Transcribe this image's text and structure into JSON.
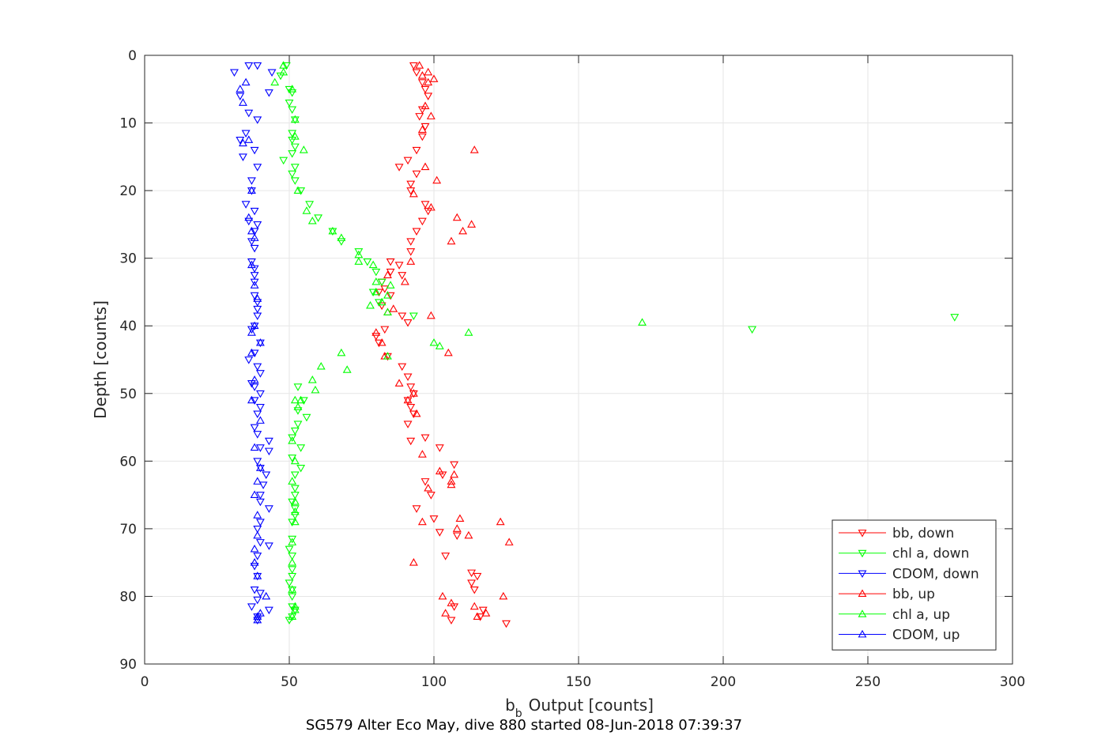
{
  "chart_data": {
    "type": "scatter",
    "title": "",
    "xlabel": "Output [counts]",
    "xlabel_symbol": "b",
    "xlabel_subscript": "b",
    "ylabel": "Depth [counts]",
    "caption": "SG579 Alter Eco May, dive 880 started 08-Jun-2018 07:39:37",
    "xlim": [
      0,
      300
    ],
    "ylim": [
      0,
      90
    ],
    "y_reversed": true,
    "grid": true,
    "legend_position": "bottom-right",
    "xticks": [
      0,
      50,
      100,
      150,
      200,
      250,
      300
    ],
    "yticks": [
      0,
      10,
      20,
      30,
      40,
      50,
      60,
      70,
      80,
      90
    ],
    "colors": {
      "red": "#ff0000",
      "green": "#00ff00",
      "blue": "#0000ff"
    },
    "series": [
      {
        "name": "bb, down",
        "marker": "triangle-down",
        "color": "#ff0000",
        "points": [
          [
            93,
            1.5
          ],
          [
            94,
            2.5
          ],
          [
            96,
            4
          ],
          [
            97,
            5
          ],
          [
            98,
            6
          ],
          [
            96,
            8
          ],
          [
            95,
            9
          ],
          [
            97,
            10.5
          ],
          [
            96,
            12
          ],
          [
            94,
            14
          ],
          [
            91,
            15.5
          ],
          [
            88,
            16.5
          ],
          [
            94,
            17.5
          ],
          [
            92,
            19
          ],
          [
            92,
            20
          ],
          [
            97,
            22
          ],
          [
            98,
            23
          ],
          [
            96,
            24.5
          ],
          [
            94,
            26
          ],
          [
            92,
            27.5
          ],
          [
            92,
            29
          ],
          [
            85,
            30.5
          ],
          [
            88,
            31
          ],
          [
            85,
            32
          ],
          [
            89,
            32.5
          ],
          [
            82,
            33.5
          ],
          [
            83,
            34.5
          ],
          [
            81,
            35
          ],
          [
            85,
            35.5
          ],
          [
            82,
            37
          ],
          [
            89,
            38.5
          ],
          [
            91,
            39.5
          ],
          [
            83,
            40.5
          ],
          [
            80,
            41.5
          ],
          [
            81,
            42.5
          ],
          [
            84,
            44.5
          ],
          [
            89,
            46
          ],
          [
            91,
            47.5
          ],
          [
            92,
            49
          ],
          [
            93,
            50
          ],
          [
            91,
            51
          ],
          [
            92,
            52
          ],
          [
            93,
            53
          ],
          [
            91,
            54.5
          ],
          [
            97,
            56.5
          ],
          [
            92,
            57
          ],
          [
            102,
            58
          ],
          [
            107,
            60.5
          ],
          [
            103,
            62
          ],
          [
            97,
            63
          ],
          [
            99,
            65
          ],
          [
            94,
            67
          ],
          [
            100,
            68.5
          ],
          [
            102,
            70.5
          ],
          [
            108,
            71
          ],
          [
            104,
            74
          ],
          [
            113,
            76.5
          ],
          [
            115,
            77
          ],
          [
            113,
            78
          ],
          [
            114,
            79
          ],
          [
            107,
            81.5
          ],
          [
            117,
            82
          ],
          [
            116,
            83
          ],
          [
            106,
            83.5
          ],
          [
            125,
            84
          ]
        ]
      },
      {
        "name": "chl a, down",
        "marker": "triangle-down",
        "color": "#00ff00",
        "points": [
          [
            49,
            1.5
          ],
          [
            47,
            3
          ],
          [
            50,
            5
          ],
          [
            51,
            5.5
          ],
          [
            50,
            7
          ],
          [
            51,
            8
          ],
          [
            52,
            9.5
          ],
          [
            51,
            11.5
          ],
          [
            51,
            12.5
          ],
          [
            52,
            13.5
          ],
          [
            51,
            14.5
          ],
          [
            48,
            15.5
          ],
          [
            52,
            16.5
          ],
          [
            51,
            17.5
          ],
          [
            52,
            18.5
          ],
          [
            54,
            20
          ],
          [
            57,
            22
          ],
          [
            60,
            24
          ],
          [
            65,
            26
          ],
          [
            68,
            27.5
          ],
          [
            74,
            29
          ],
          [
            77,
            30.5
          ],
          [
            80,
            32
          ],
          [
            82,
            33.5
          ],
          [
            79,
            35
          ],
          [
            81,
            36.5
          ],
          [
            93,
            38.5
          ],
          [
            210,
            40.5
          ],
          [
            280,
            38.7
          ],
          [
            53,
            49
          ],
          [
            55,
            51
          ],
          [
            53,
            52.5
          ],
          [
            56,
            53.5
          ],
          [
            53,
            54.5
          ],
          [
            52,
            55.5
          ],
          [
            51,
            56.5
          ],
          [
            54,
            58
          ],
          [
            51,
            59.5
          ],
          [
            54,
            61
          ],
          [
            52,
            62
          ],
          [
            52,
            64
          ],
          [
            52,
            65
          ],
          [
            51,
            66
          ],
          [
            52,
            67
          ],
          [
            52,
            68
          ],
          [
            51,
            69
          ],
          [
            51,
            71.5
          ],
          [
            50,
            73
          ],
          [
            51,
            74
          ],
          [
            51,
            76
          ],
          [
            51,
            77
          ],
          [
            50,
            78
          ],
          [
            51,
            79
          ],
          [
            51,
            80
          ],
          [
            51,
            81.5
          ],
          [
            52,
            82
          ],
          [
            51,
            83
          ],
          [
            50,
            83.5
          ]
        ]
      },
      {
        "name": "CDOM, down",
        "marker": "triangle-down",
        "color": "#0000ff",
        "points": [
          [
            36,
            1.5
          ],
          [
            39,
            1.5
          ],
          [
            31,
            2.5
          ],
          [
            44,
            2.5
          ],
          [
            43,
            5.5
          ],
          [
            33,
            6
          ],
          [
            36,
            8.5
          ],
          [
            39,
            9.5
          ],
          [
            35,
            11.5
          ],
          [
            33,
            12.5
          ],
          [
            38,
            14
          ],
          [
            34,
            15
          ],
          [
            39,
            16.5
          ],
          [
            37,
            18.5
          ],
          [
            37,
            20
          ],
          [
            35,
            22
          ],
          [
            38,
            23
          ],
          [
            36,
            24.5
          ],
          [
            39,
            25
          ],
          [
            38,
            26
          ],
          [
            37,
            27.5
          ],
          [
            38,
            28.5
          ],
          [
            37,
            30.5
          ],
          [
            38,
            31.5
          ],
          [
            38,
            32.5
          ],
          [
            38,
            33.5
          ],
          [
            38,
            35.5
          ],
          [
            39,
            36.5
          ],
          [
            39,
            37.5
          ],
          [
            39,
            38.5
          ],
          [
            38,
            40
          ],
          [
            37,
            40.5
          ],
          [
            40,
            42.5
          ],
          [
            38,
            44
          ],
          [
            36,
            45
          ],
          [
            39,
            46
          ],
          [
            40,
            47
          ],
          [
            37,
            48.5
          ],
          [
            38,
            49
          ],
          [
            40,
            50
          ],
          [
            38,
            51
          ],
          [
            40,
            52
          ],
          [
            39,
            53
          ],
          [
            38,
            55
          ],
          [
            39,
            56
          ],
          [
            43,
            57
          ],
          [
            40,
            58
          ],
          [
            43,
            58.5
          ],
          [
            39,
            60
          ],
          [
            40,
            61
          ],
          [
            42,
            62
          ],
          [
            41,
            63.5
          ],
          [
            40,
            65
          ],
          [
            40,
            66
          ],
          [
            43,
            67
          ],
          [
            40,
            69
          ],
          [
            39,
            70
          ],
          [
            40,
            72
          ],
          [
            43,
            72.5
          ],
          [
            39,
            74
          ],
          [
            38,
            75.5
          ],
          [
            39,
            77
          ],
          [
            38,
            79
          ],
          [
            40,
            79.5
          ],
          [
            39,
            80.5
          ],
          [
            37,
            81.5
          ],
          [
            43,
            82
          ],
          [
            39,
            83
          ],
          [
            39,
            83.5
          ]
        ]
      },
      {
        "name": "bb, up",
        "marker": "triangle-up",
        "color": "#ff0000",
        "points": [
          [
            95,
            1.5
          ],
          [
            96,
            3
          ],
          [
            98,
            2.5
          ],
          [
            100,
            3.5
          ],
          [
            98,
            4
          ],
          [
            97,
            7.5
          ],
          [
            99,
            9
          ],
          [
            96,
            11
          ],
          [
            114,
            14
          ],
          [
            97,
            16.5
          ],
          [
            101,
            18.5
          ],
          [
            93,
            20.5
          ],
          [
            99,
            22.5
          ],
          [
            108,
            24
          ],
          [
            113,
            25
          ],
          [
            110,
            26
          ],
          [
            106,
            27.5
          ],
          [
            92,
            30.5
          ],
          [
            84,
            32.5
          ],
          [
            90,
            33.5
          ],
          [
            86,
            37.5
          ],
          [
            84,
            38
          ],
          [
            99,
            38.5
          ],
          [
            80,
            41
          ],
          [
            82,
            42.5
          ],
          [
            83,
            44.5
          ],
          [
            88,
            48.5
          ],
          [
            93,
            50
          ],
          [
            91,
            51
          ],
          [
            94,
            53
          ],
          [
            105,
            44
          ],
          [
            96,
            59
          ],
          [
            102,
            61.5
          ],
          [
            107,
            62
          ],
          [
            106,
            63.5
          ],
          [
            98,
            64
          ],
          [
            109,
            68.5
          ],
          [
            96,
            69
          ],
          [
            108,
            70
          ],
          [
            112,
            71
          ],
          [
            93,
            75
          ],
          [
            103,
            80
          ],
          [
            106,
            81
          ],
          [
            114,
            81.5
          ],
          [
            118,
            82.5
          ],
          [
            115,
            83
          ],
          [
            124,
            80
          ],
          [
            126,
            72
          ],
          [
            123,
            69
          ],
          [
            104,
            82.5
          ],
          [
            106,
            63
          ]
        ]
      },
      {
        "name": "chl a, up",
        "marker": "triangle-up",
        "color": "#00ff00",
        "points": [
          [
            48,
            1.5
          ],
          [
            48,
            2.5
          ],
          [
            45,
            4
          ],
          [
            51,
            5
          ],
          [
            52,
            9.5
          ],
          [
            52,
            12
          ],
          [
            55,
            14
          ],
          [
            53,
            20
          ],
          [
            56,
            23
          ],
          [
            58,
            24.5
          ],
          [
            65,
            26
          ],
          [
            68,
            27
          ],
          [
            74,
            29.5
          ],
          [
            74,
            30.5
          ],
          [
            79,
            31
          ],
          [
            80,
            33.5
          ],
          [
            85,
            34
          ],
          [
            80,
            35
          ],
          [
            84,
            35.5
          ],
          [
            82,
            36.5
          ],
          [
            78,
            37
          ],
          [
            84,
            38
          ],
          [
            172,
            39.5
          ],
          [
            100,
            42.5
          ],
          [
            112,
            41
          ],
          [
            102,
            43
          ],
          [
            68,
            44
          ],
          [
            84,
            44.5
          ],
          [
            61,
            46
          ],
          [
            70,
            46.5
          ],
          [
            58,
            48
          ],
          [
            59,
            49.5
          ],
          [
            52,
            51
          ],
          [
            53,
            52
          ],
          [
            54,
            51
          ],
          [
            51,
            57
          ],
          [
            52,
            60
          ],
          [
            51,
            63
          ],
          [
            52,
            66
          ],
          [
            52,
            67.5
          ],
          [
            52,
            69
          ],
          [
            51,
            72
          ],
          [
            51,
            75
          ],
          [
            51,
            79
          ],
          [
            52,
            81.5
          ],
          [
            52,
            82
          ],
          [
            51,
            83
          ]
        ]
      },
      {
        "name": "CDOM, up",
        "marker": "triangle-up",
        "color": "#0000ff",
        "points": [
          [
            35,
            4
          ],
          [
            33,
            5
          ],
          [
            34,
            7
          ],
          [
            36,
            12.5
          ],
          [
            34,
            13
          ],
          [
            37,
            20
          ],
          [
            36,
            24
          ],
          [
            37,
            26
          ],
          [
            38,
            27
          ],
          [
            37,
            31
          ],
          [
            38,
            34
          ],
          [
            39,
            36
          ],
          [
            38,
            40
          ],
          [
            37,
            41
          ],
          [
            40,
            42.5
          ],
          [
            37,
            44
          ],
          [
            38,
            48
          ],
          [
            37,
            51
          ],
          [
            40,
            54
          ],
          [
            38,
            58
          ],
          [
            40,
            61
          ],
          [
            39,
            63
          ],
          [
            38,
            65
          ],
          [
            39,
            68
          ],
          [
            39,
            71
          ],
          [
            38,
            73
          ],
          [
            38,
            75
          ],
          [
            39,
            77
          ],
          [
            42,
            80
          ],
          [
            40,
            82.5
          ],
          [
            39,
            83
          ],
          [
            39,
            83.5
          ]
        ]
      }
    ]
  }
}
